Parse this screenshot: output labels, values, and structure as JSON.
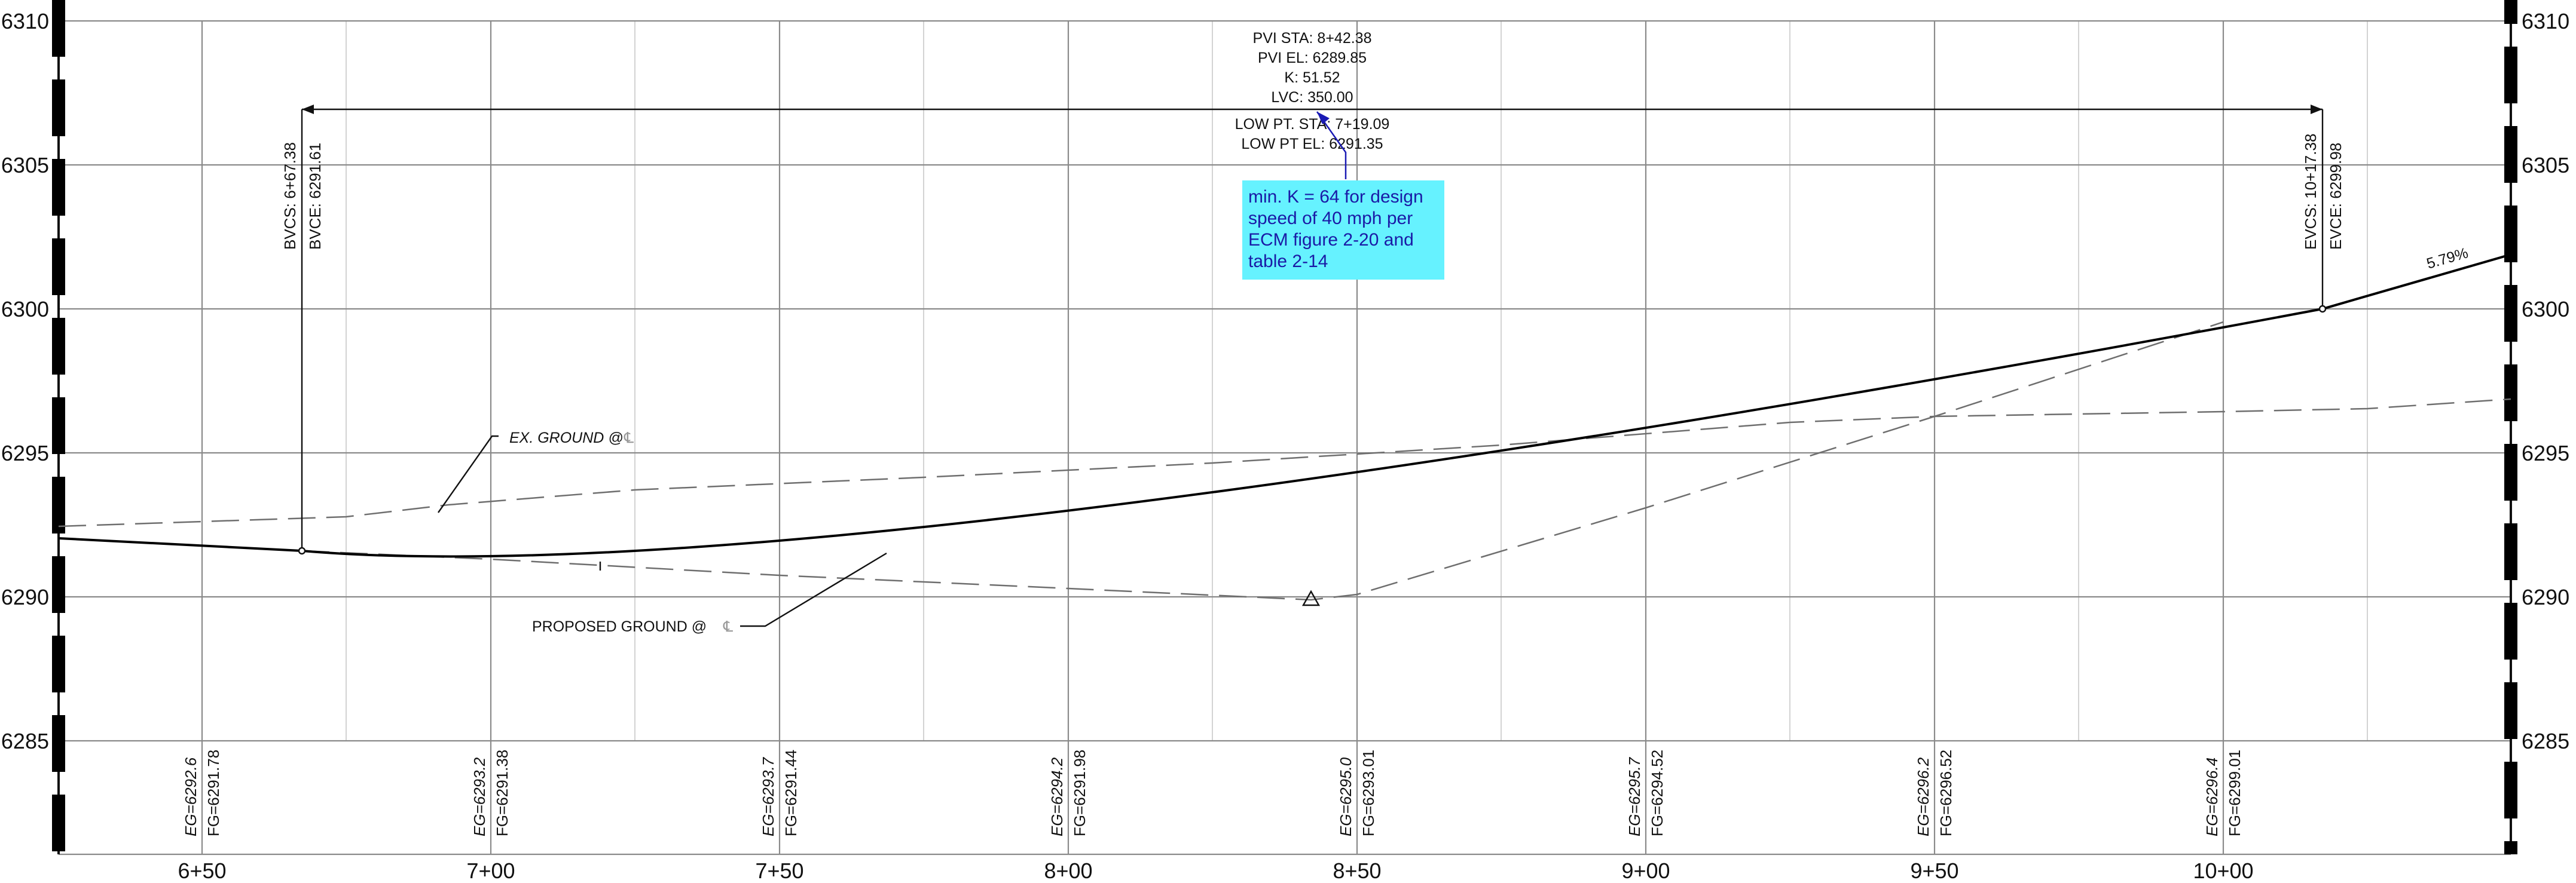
{
  "axes": {
    "elevations": [
      "6310",
      "6305",
      "6300",
      "6295",
      "6290",
      "6285"
    ],
    "stations": [
      "6+50",
      "7+00",
      "7+50",
      "8+00",
      "8+50",
      "9+00",
      "9+50",
      "10+00"
    ]
  },
  "band_values": [
    {
      "eg": "EG=6292.6",
      "fg": "FG=6291.78"
    },
    {
      "eg": "EG=6293.2",
      "fg": "FG=6291.38"
    },
    {
      "eg": "EG=6293.7",
      "fg": "FG=6291.44"
    },
    {
      "eg": "EG=6294.2",
      "fg": "FG=6291.98"
    },
    {
      "eg": "EG=6295.0",
      "fg": "FG=6293.01"
    },
    {
      "eg": "EG=6295.7",
      "fg": "FG=6294.52"
    },
    {
      "eg": "EG=6296.2",
      "fg": "FG=6296.52"
    },
    {
      "eg": "EG=6296.4",
      "fg": "FG=6299.01"
    }
  ],
  "vertical_curve": {
    "pvi_sta": "PVI STA: 8+42.38",
    "pvi_el": "PVI EL: 6289.85",
    "k": "K: 51.52",
    "lvc": "LVC: 350.00",
    "low_pt_sta": "LOW PT. STA: 7+19.09",
    "low_pt_el": "LOW PT EL: 6291.35",
    "bvcs": "BVCS: 6+67.38",
    "bvce": "BVCE: 6291.61",
    "evcs": "EVCS: 10+17.38",
    "evce": "EVCE: 6299.98",
    "grade_out": "5.79%"
  },
  "labels": {
    "existing_ground": "EX. GROUND @",
    "proposed_ground": "PROPOSED GROUND @",
    "centerline_symbol": "℄"
  },
  "note": {
    "lines": [
      "min. K = 64 for design",
      "speed of 40 mph per",
      "ECM figure 2-20 and",
      "table 2-14"
    ],
    "background": "#66f2ff",
    "text_color": "#1a1aa6"
  }
}
